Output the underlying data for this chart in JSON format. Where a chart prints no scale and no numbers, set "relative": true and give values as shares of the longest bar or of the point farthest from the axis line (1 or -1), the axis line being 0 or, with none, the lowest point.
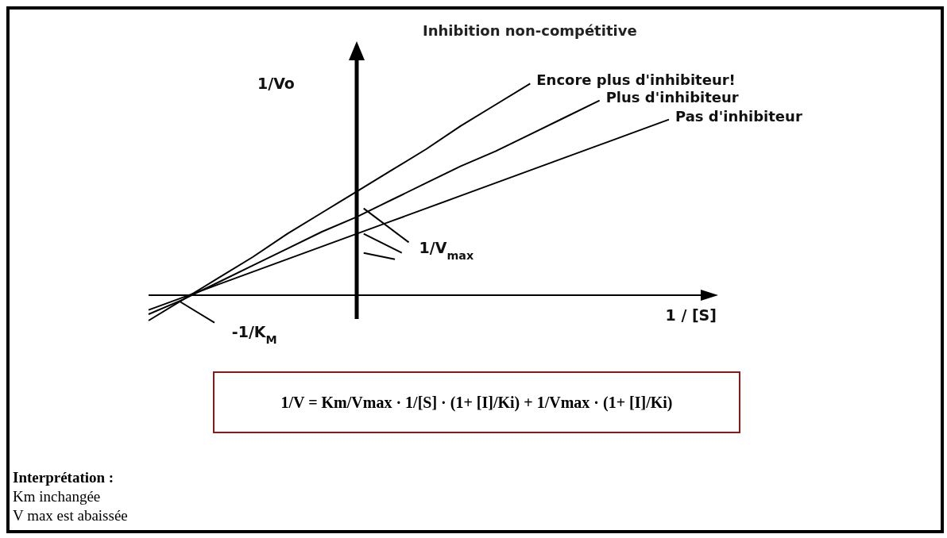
{
  "chart_data": {
    "type": "line",
    "title": "Inhibition non-compétitive",
    "xlabel": "1 / [S]",
    "ylabel": "1/Vo",
    "relative": true,
    "tick_labels": false,
    "categories": [
      null,
      null,
      null,
      null,
      null,
      null,
      null,
      null,
      null,
      null,
      null,
      null,
      null,
      null,
      null,
      null
    ],
    "series": [
      {
        "name": "Encore plus d'inhibiteur!",
        "color": "#000000",
        "values": [
          -0.12,
          -0.02,
          0.08,
          0.18,
          0.29,
          0.39,
          0.49,
          0.59,
          0.69,
          0.8,
          0.9,
          1.0,
          null,
          null,
          null,
          null
        ]
      },
      {
        "name": "Plus d'inhibiteur",
        "color": "#000000",
        "values": [
          -0.09,
          -0.02,
          0.06,
          0.14,
          0.22,
          0.3,
          0.37,
          0.45,
          0.53,
          0.61,
          0.68,
          0.76,
          0.84,
          0.92,
          null,
          null
        ]
      },
      {
        "name": "Pas d'inhibiteur",
        "color": "#000000",
        "values": [
          -0.07,
          -0.01,
          0.05,
          0.11,
          0.17,
          0.23,
          0.29,
          0.35,
          0.41,
          0.47,
          0.53,
          0.59,
          0.65,
          0.71,
          0.77,
          0.83
        ]
      }
    ],
    "annotations": [
      "-1/K$_{M}$",
      "1/V$_{max}$",
      "1/V = Km/Vmax · 1/[S] · (1+ [I]/Ki) + 1/Vmax · (1+ [I]/Ki)",
      "Interprétation :",
      "Km inchangée",
      "V max  est abaissée"
    ]
  }
}
